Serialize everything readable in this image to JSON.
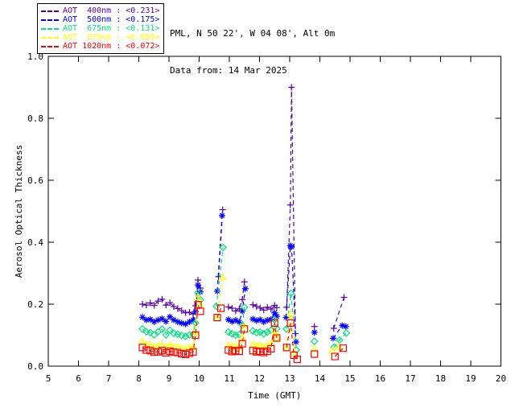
{
  "header": {
    "site_line": "PML, N 50 22', W 04 08', Alt 0m",
    "date_line": "Data from: 14 Mar 2025"
  },
  "chart_data": {
    "type": "line",
    "title": "",
    "xlabel": "Time (GMT)",
    "ylabel": "Aerosol Optical Thickness",
    "xlim": [
      5,
      20
    ],
    "ylim": [
      0.0,
      1.0
    ],
    "x_ticks": [
      5,
      6,
      7,
      8,
      9,
      10,
      11,
      12,
      13,
      14,
      15,
      16,
      17,
      18,
      19,
      20
    ],
    "y_ticks": [
      0.0,
      0.2,
      0.4,
      0.6,
      0.8,
      1.0
    ],
    "y_tick_labels": [
      "0.0",
      "0.2",
      "0.4",
      "0.6",
      "0.8",
      "1.0"
    ],
    "grid": false,
    "legend_position": "outside-top-left",
    "line_style": "dashed",
    "series": [
      {
        "name": "AOT 400nm",
        "wavelength_nm": 400,
        "daily_mean": 0.231,
        "legend_label": "AOT  400nm : <0.231>",
        "color": "#5500AA",
        "marker": "plus",
        "runs": [
          {
            "t": [
              8.12,
              8.25,
              8.38,
              8.51,
              8.64,
              8.77,
              8.9,
              9.03,
              9.16,
              9.29,
              9.42,
              9.55,
              9.68,
              9.8,
              9.88,
              9.96,
              10.04
            ],
            "v": [
              0.2,
              0.197,
              0.204,
              0.196,
              0.21,
              0.216,
              0.197,
              0.205,
              0.192,
              0.186,
              0.179,
              0.172,
              0.174,
              0.168,
              0.195,
              0.278,
              0.252
            ]
          },
          {
            "t": [
              10.64,
              10.78
            ],
            "v": [
              0.289,
              0.505
            ]
          },
          {
            "t": [
              10.97,
              11.09,
              11.21,
              11.33,
              11.43,
              11.5
            ],
            "v": [
              0.191,
              0.187,
              0.178,
              0.185,
              0.215,
              0.272
            ]
          },
          {
            "t": [
              11.78,
              11.9,
              12.02,
              12.14,
              12.26,
              12.38,
              12.5,
              12.57
            ],
            "v": [
              0.198,
              0.193,
              0.188,
              0.181,
              0.19,
              0.184,
              0.196,
              0.189
            ]
          },
          {
            "t": [
              12.9,
              13.02,
              13.06,
              13.19
            ],
            "v": [
              0.19,
              0.52,
              0.9,
              0.105
            ]
          },
          {
            "t": [
              13.82
            ],
            "v": [
              0.128
            ]
          },
          {
            "t": [
              14.46,
              14.8
            ],
            "v": [
              0.122,
              0.222
            ]
          }
        ]
      },
      {
        "name": "AOT 500nm",
        "wavelength_nm": 500,
        "daily_mean": 0.175,
        "legend_label": "AOT  500nm : <0.175>",
        "color": "#0000FF",
        "marker": "asterisk",
        "runs": [
          {
            "t": [
              8.12,
              8.25,
              8.38,
              8.51,
              8.64,
              8.77,
              8.9,
              9.03,
              9.16,
              9.29,
              9.42,
              9.55,
              9.68,
              9.8,
              9.88,
              9.96,
              10.04
            ],
            "v": [
              0.158,
              0.149,
              0.151,
              0.143,
              0.149,
              0.153,
              0.144,
              0.159,
              0.149,
              0.143,
              0.139,
              0.136,
              0.143,
              0.149,
              0.175,
              0.262,
              0.24
            ]
          },
          {
            "t": [
              10.6,
              10.76
            ],
            "v": [
              0.242,
              0.486
            ]
          },
          {
            "t": [
              10.97,
              11.09,
              11.21,
              11.33,
              11.43,
              11.53
            ],
            "v": [
              0.15,
              0.144,
              0.148,
              0.142,
              0.178,
              0.25
            ]
          },
          {
            "t": [
              11.78,
              11.9,
              12.02,
              12.14,
              12.26,
              12.38,
              12.5,
              12.57
            ],
            "v": [
              0.152,
              0.147,
              0.15,
              0.143,
              0.148,
              0.151,
              0.172,
              0.161
            ]
          },
          {
            "t": [
              12.88,
              13.02,
              13.06,
              13.21
            ],
            "v": [
              0.157,
              0.389,
              0.385,
              0.078
            ]
          },
          {
            "t": [
              13.82
            ],
            "v": [
              0.109
            ]
          },
          {
            "t": [
              14.44,
              14.74,
              14.86
            ],
            "v": [
              0.09,
              0.131,
              0.128
            ]
          }
        ]
      },
      {
        "name": "AOT 675nm",
        "wavelength_nm": 675,
        "daily_mean": 0.131,
        "legend_label": "AOT  675nm : <0.131>",
        "color": "#00E07C",
        "marker": "diamond",
        "runs": [
          {
            "t": [
              8.12,
              8.25,
              8.38,
              8.51,
              8.64,
              8.77,
              8.9,
              9.03,
              9.16,
              9.29,
              9.42,
              9.55,
              9.68,
              9.8,
              9.88,
              9.96,
              10.04
            ],
            "v": [
              0.12,
              0.111,
              0.108,
              0.101,
              0.111,
              0.119,
              0.101,
              0.116,
              0.106,
              0.103,
              0.099,
              0.096,
              0.101,
              0.103,
              0.14,
              0.237,
              0.214
            ]
          },
          {
            "t": [
              10.57,
              10.79
            ],
            "v": [
              0.193,
              0.383
            ]
          },
          {
            "t": [
              10.97,
              11.09,
              11.21,
              11.33,
              11.43,
              11.5
            ],
            "v": [
              0.11,
              0.104,
              0.1,
              0.102,
              0.132,
              0.19
            ]
          },
          {
            "t": [
              11.78,
              11.9,
              12.02,
              12.14,
              12.26,
              12.38,
              12.5,
              12.57
            ],
            "v": [
              0.114,
              0.108,
              0.11,
              0.104,
              0.11,
              0.116,
              0.15,
              0.121
            ]
          },
          {
            "t": [
              12.89,
              13.04,
              13.22
            ],
            "v": [
              0.12,
              0.235,
              0.052
            ]
          },
          {
            "t": [
              13.82
            ],
            "v": [
              0.08
            ]
          },
          {
            "t": [
              14.47,
              14.65,
              14.88
            ],
            "v": [
              0.061,
              0.084,
              0.107
            ]
          }
        ]
      },
      {
        "name": "AOT 870nm",
        "wavelength_nm": 870,
        "daily_mean": 0.089,
        "legend_label": "AOT  870nm : <0.089>",
        "color": "#FFFF00",
        "marker": "triangle",
        "runs": [
          {
            "t": [
              8.12,
              8.25,
              8.38,
              8.51,
              8.64,
              8.77,
              8.9,
              9.03,
              9.16,
              9.29,
              9.42,
              9.55,
              9.68,
              9.8,
              9.88,
              9.96,
              10.04
            ],
            "v": [
              0.079,
              0.07,
              0.068,
              0.062,
              0.065,
              0.068,
              0.06,
              0.068,
              0.062,
              0.062,
              0.058,
              0.056,
              0.06,
              0.061,
              0.11,
              0.222,
              0.195
            ]
          },
          {
            "t": [
              10.58,
              10.78
            ],
            "v": [
              0.155,
              0.287
            ]
          },
          {
            "t": [
              10.97,
              11.09,
              11.21,
              11.33,
              11.43,
              11.5
            ],
            "v": [
              0.068,
              0.063,
              0.065,
              0.062,
              0.092,
              0.13
            ]
          },
          {
            "t": [
              11.78,
              11.9,
              12.02,
              12.14,
              12.26,
              12.38,
              12.5,
              12.57
            ],
            "v": [
              0.07,
              0.066,
              0.068,
              0.062,
              0.066,
              0.073,
              0.113,
              0.092
            ]
          },
          {
            "t": [
              12.88,
              13.03,
              13.15
            ],
            "v": [
              0.057,
              0.17,
              0.045
            ]
          },
          {
            "t": [
              13.82
            ],
            "v": [
              0.055
            ]
          },
          {
            "t": [
              14.41,
              14.63
            ],
            "v": [
              0.05,
              0.063
            ]
          }
        ]
      },
      {
        "name": "AOT 1020nm",
        "wavelength_nm": 1020,
        "daily_mean": 0.072,
        "legend_label": "AOT 1020nm : <0.072>",
        "color": "#FF0000",
        "marker": "square",
        "runs": [
          {
            "t": [
              8.12,
              8.25,
              8.38,
              8.51,
              8.64,
              8.77,
              8.9,
              9.03,
              9.16,
              9.29,
              9.42,
              9.55,
              9.68,
              9.8,
              9.88,
              9.96,
              10.04
            ],
            "v": [
              0.06,
              0.052,
              0.05,
              0.045,
              0.046,
              0.05,
              0.043,
              0.048,
              0.045,
              0.044,
              0.04,
              0.038,
              0.042,
              0.046,
              0.1,
              0.198,
              0.177
            ]
          },
          {
            "t": [
              10.6,
              10.72
            ],
            "v": [
              0.157,
              0.187
            ]
          },
          {
            "t": [
              10.97,
              11.09,
              11.21,
              11.33,
              11.43,
              11.5
            ],
            "v": [
              0.052,
              0.047,
              0.05,
              0.048,
              0.072,
              0.12
            ]
          },
          {
            "t": [
              11.78,
              11.9,
              12.02,
              12.14,
              12.26,
              12.38,
              12.5,
              12.57
            ],
            "v": [
              0.05,
              0.046,
              0.048,
              0.044,
              0.048,
              0.056,
              0.139,
              0.091
            ]
          },
          {
            "t": [
              12.9,
              13.03,
              13.14,
              13.25
            ],
            "v": [
              0.06,
              0.139,
              0.035,
              0.022
            ]
          },
          {
            "t": [
              13.82
            ],
            "v": [
              0.039
            ]
          },
          {
            "t": [
              14.5,
              14.77
            ],
            "v": [
              0.031,
              0.058
            ]
          }
        ]
      }
    ]
  }
}
